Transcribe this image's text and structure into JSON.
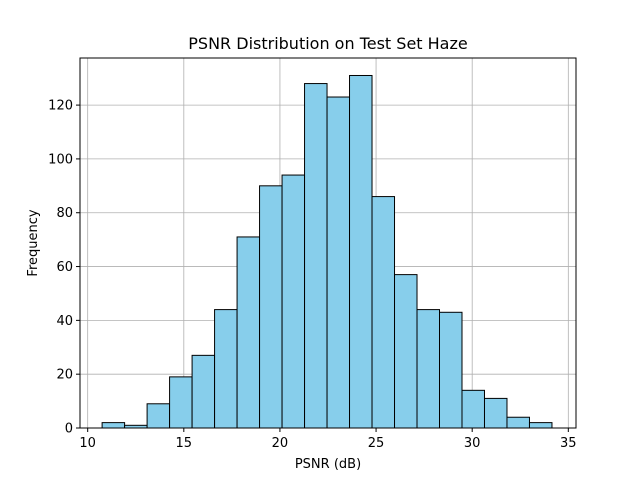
{
  "chart_data": {
    "type": "bar",
    "title": "PSNR Distribution on Test Set Haze",
    "xlabel": "PSNR (dB)",
    "ylabel": "Frequency",
    "xlim": [
      9.6,
      35.4
    ],
    "ylim": [
      0,
      137.5
    ],
    "xticks": [
      10,
      15,
      20,
      25,
      30,
      35
    ],
    "yticks": [
      0,
      20,
      40,
      60,
      80,
      100,
      120
    ],
    "grid": true,
    "bar_color": "#87ceeb",
    "edge_color": "#000000",
    "bins": [
      {
        "start": 10.75,
        "end": 11.92,
        "count": 2
      },
      {
        "start": 11.92,
        "end": 13.09,
        "count": 1
      },
      {
        "start": 13.09,
        "end": 14.26,
        "count": 9
      },
      {
        "start": 14.26,
        "end": 15.43,
        "count": 19
      },
      {
        "start": 15.43,
        "end": 16.6,
        "count": 27
      },
      {
        "start": 16.6,
        "end": 17.77,
        "count": 44
      },
      {
        "start": 17.77,
        "end": 18.94,
        "count": 71
      },
      {
        "start": 18.94,
        "end": 20.11,
        "count": 90
      },
      {
        "start": 20.11,
        "end": 21.28,
        "count": 94
      },
      {
        "start": 21.28,
        "end": 22.45,
        "count": 128
      },
      {
        "start": 22.45,
        "end": 23.62,
        "count": 123
      },
      {
        "start": 23.62,
        "end": 24.79,
        "count": 131
      },
      {
        "start": 24.79,
        "end": 25.96,
        "count": 86
      },
      {
        "start": 25.96,
        "end": 27.13,
        "count": 57
      },
      {
        "start": 27.13,
        "end": 28.3,
        "count": 44
      },
      {
        "start": 28.3,
        "end": 29.47,
        "count": 43
      },
      {
        "start": 29.47,
        "end": 30.64,
        "count": 14
      },
      {
        "start": 30.64,
        "end": 31.81,
        "count": 11
      },
      {
        "start": 31.81,
        "end": 32.98,
        "count": 4
      },
      {
        "start": 32.98,
        "end": 34.15,
        "count": 2
      }
    ]
  }
}
